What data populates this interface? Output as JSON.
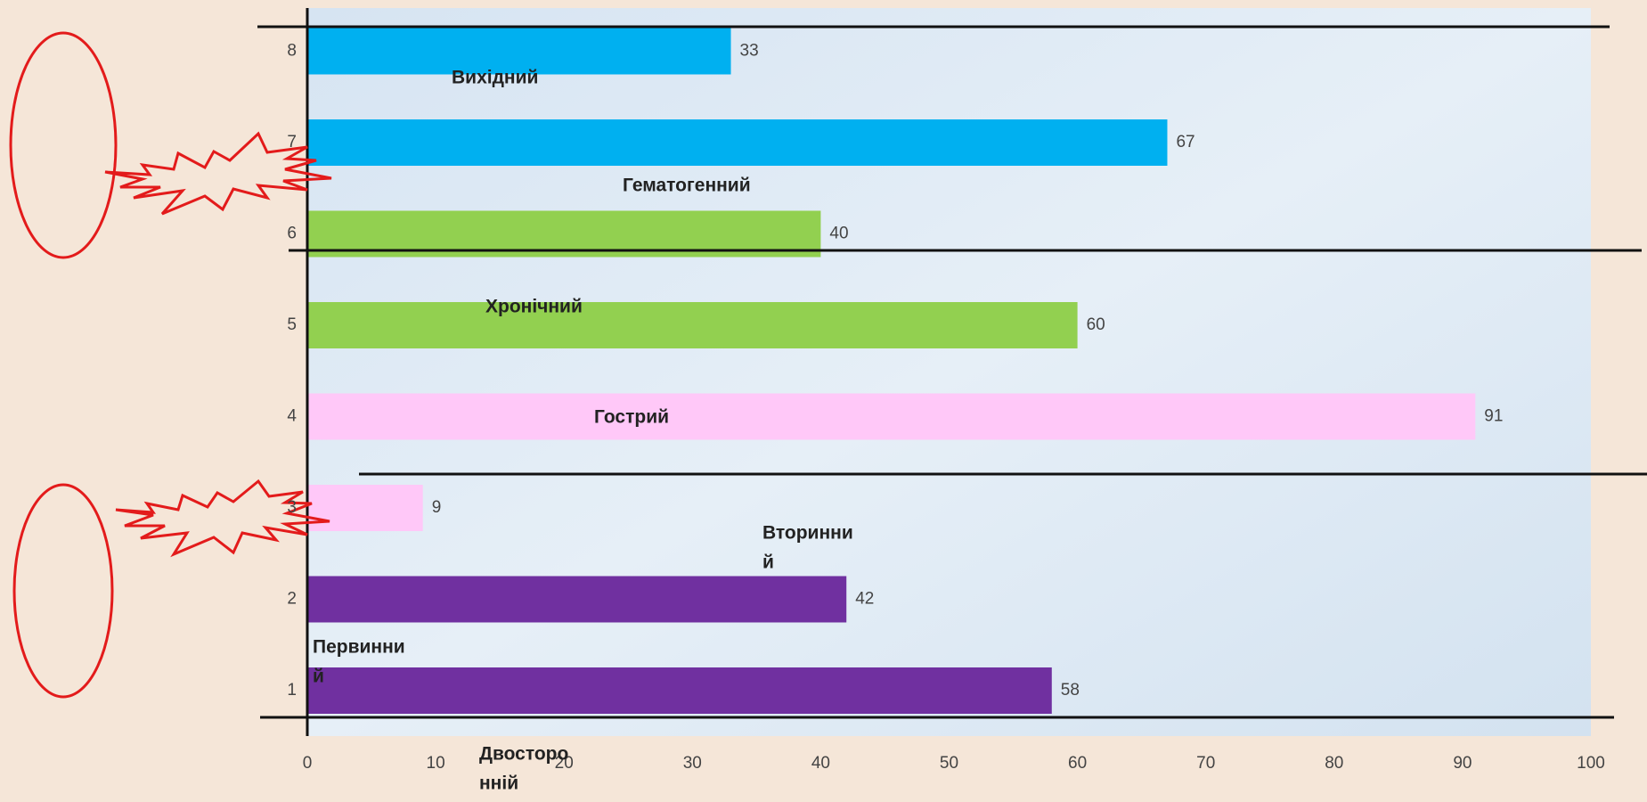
{
  "chart_data": {
    "type": "barh",
    "categories": [
      "1",
      "2",
      "3",
      "4",
      "5",
      "6",
      "7",
      "8"
    ],
    "values": [
      58,
      42,
      9,
      91,
      60,
      40,
      67,
      33
    ],
    "colors": [
      "#7030a0",
      "#7030a0",
      "#ffc8f8",
      "#ffc8f8",
      "#92d050",
      "#92d050",
      "#00b0f0",
      "#00b0f0"
    ],
    "xlim": [
      0,
      100
    ],
    "xticks": [
      0,
      10,
      20,
      30,
      40,
      50,
      60,
      70,
      80,
      90,
      100
    ],
    "annotations": [
      [
        "Вихідний"
      ],
      [
        "Гематогенний"
      ],
      [
        "Хронічний"
      ],
      [
        "Гострий"
      ],
      [
        "Вторинни",
        "й"
      ],
      [
        "Первинни",
        "й"
      ],
      [
        "Двосторо",
        "нній"
      ]
    ]
  }
}
